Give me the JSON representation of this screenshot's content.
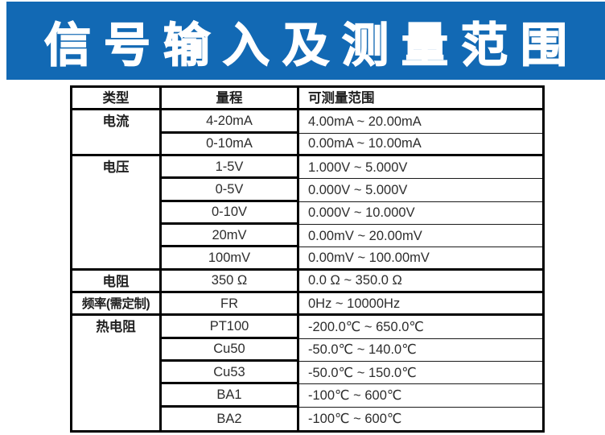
{
  "banner": {
    "title": "信号输入及测量范围"
  },
  "colors": {
    "banner_bg": "#1269B4",
    "banner_text": "#FFFFFF",
    "table_border": "#000000",
    "table_text": "#2D2D2D"
  },
  "table": {
    "headers": [
      "类型",
      "量程",
      "可测量范围"
    ],
    "groups": [
      {
        "type": "电流",
        "rows": [
          {
            "range": "4-20mA",
            "measurable": "4.00mA ~ 20.00mA"
          },
          {
            "range": "0-10mA",
            "measurable": "0.00mA ~ 10.00mA"
          }
        ]
      },
      {
        "type": "电压",
        "rows": [
          {
            "range": "1-5V",
            "measurable": "1.000V ~ 5.000V"
          },
          {
            "range": "0-5V",
            "measurable": "0.000V ~ 5.000V"
          },
          {
            "range": "0-10V",
            "measurable": "0.000V ~ 10.000V"
          },
          {
            "range": "20mV",
            "measurable": "0.00mV ~ 20.00mV"
          },
          {
            "range": "100mV",
            "measurable": "0.00mV ~ 100.00mV"
          }
        ]
      },
      {
        "type": "电阻",
        "rows": [
          {
            "range": "350 Ω",
            "measurable": "0.0 Ω ~ 350.0 Ω"
          }
        ]
      },
      {
        "type": "频率(需定制)",
        "rows": [
          {
            "range": "FR",
            "measurable": "0Hz ~ 10000Hz"
          }
        ]
      },
      {
        "type": "热电阻",
        "rows": [
          {
            "range": "PT100",
            "measurable": "-200.0℃ ~ 650.0℃"
          },
          {
            "range": "Cu50",
            "measurable": "-50.0℃ ~ 140.0℃"
          },
          {
            "range": "Cu53",
            "measurable": "-50.0℃ ~ 150.0℃"
          },
          {
            "range": "BA1",
            "measurable": "-100℃ ~ 600℃"
          },
          {
            "range": "BA2",
            "measurable": "-100℃ ~ 600℃"
          }
        ]
      }
    ]
  }
}
